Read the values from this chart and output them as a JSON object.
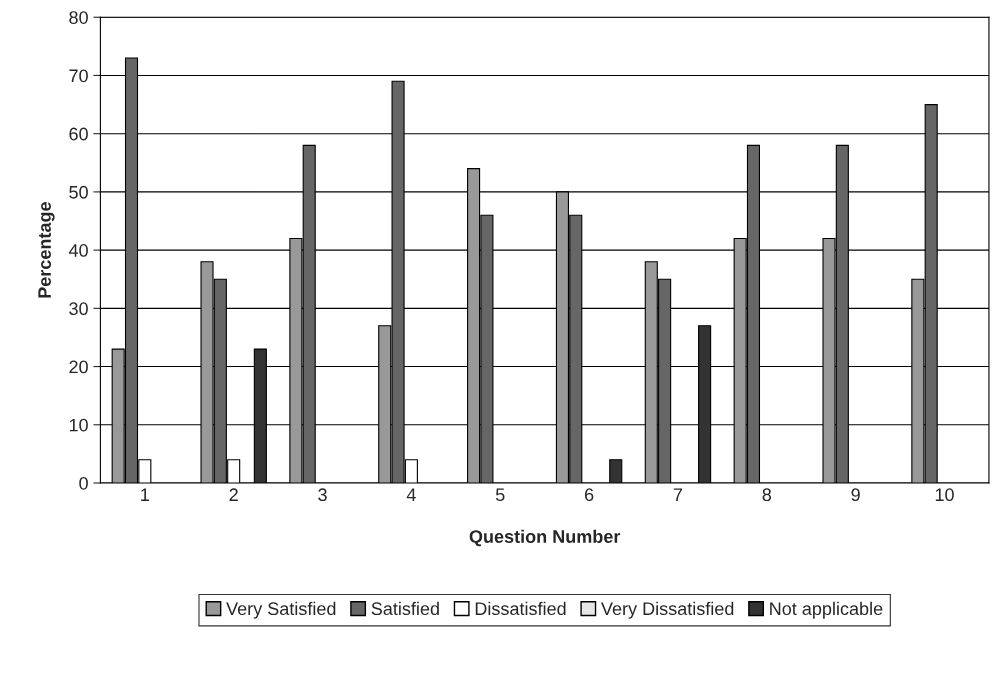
{
  "chart_data": {
    "type": "bar",
    "xlabel": "Question Number",
    "ylabel": "Percentage",
    "categories": [
      "1",
      "2",
      "3",
      "4",
      "5",
      "6",
      "7",
      "8",
      "9",
      "10"
    ],
    "series": [
      {
        "name": "Very Satisfied",
        "color": "#999999",
        "values": [
          23,
          38,
          42,
          27,
          54,
          50,
          38,
          42,
          42,
          35
        ]
      },
      {
        "name": "Satisfied",
        "color": "#666666",
        "values": [
          73,
          35,
          58,
          69,
          46,
          46,
          35,
          58,
          58,
          65
        ]
      },
      {
        "name": "Dissatisfied",
        "color": "#ffffff",
        "values": [
          4,
          4,
          0,
          4,
          0,
          0,
          0,
          0,
          0,
          0
        ]
      },
      {
        "name": "Very Dissatisfied",
        "color": "#e6e6e6",
        "values": [
          0,
          0,
          0,
          0,
          0,
          0,
          0,
          0,
          0,
          0
        ]
      },
      {
        "name": "Not applicable",
        "color": "#333333",
        "values": [
          0,
          23,
          0,
          0,
          0,
          4,
          27,
          0,
          0,
          0
        ]
      }
    ],
    "ylim": [
      0,
      80
    ],
    "yticks": [
      0,
      10,
      20,
      30,
      40,
      50,
      60,
      70,
      80
    ],
    "grid": "y",
    "legend": "bottom"
  }
}
